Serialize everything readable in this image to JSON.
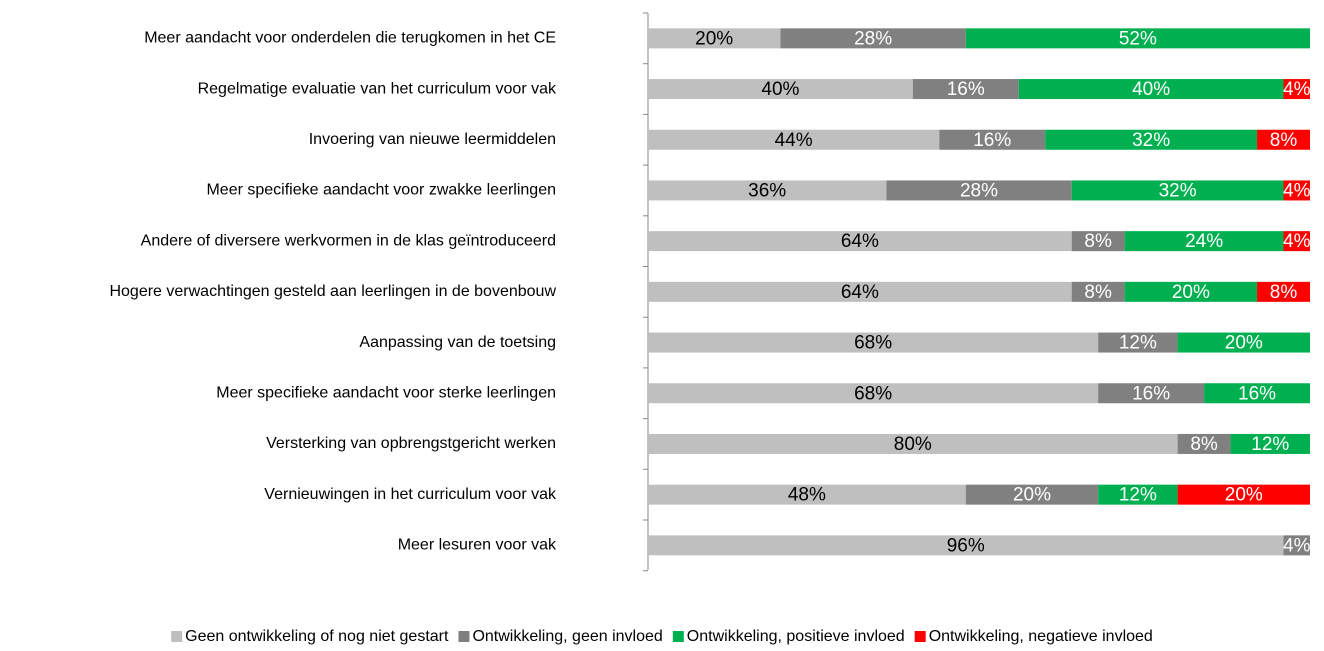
{
  "chart_data": {
    "type": "stacked-barh",
    "categories": [
      "Meer aandacht voor onderdelen die terugkomen in het CE",
      "Regelmatige evaluatie van het curriculum voor vak",
      "Invoering van nieuwe leermiddelen",
      "Meer specifieke aandacht voor zwakke leerlingen",
      "Andere of diversere werkvormen in de klas geïntroduceerd",
      "Hogere verwachtingen gesteld aan leerlingen in de bovenbouw",
      "Aanpassing van de toetsing",
      "Meer specifieke aandacht voor sterke leerlingen",
      "Versterking van opbrengstgericht werken",
      "Vernieuwingen in het curriculum voor vak",
      "Meer lesuren voor vak"
    ],
    "series": [
      {
        "name": "Geen ontwikkeling of nog niet gestart",
        "color": "#bfbfbf",
        "values": [
          20,
          40,
          44,
          36,
          64,
          64,
          68,
          68,
          80,
          48,
          96
        ],
        "value_labels": [
          "20%",
          "40%",
          "44%",
          "36%",
          "64%",
          "64%",
          "68%",
          "68%",
          "80%",
          "48%",
          "96%"
        ]
      },
      {
        "name": "Ontwikkeling, geen invloed",
        "color": "#808080",
        "values": [
          28,
          16,
          16,
          28,
          8,
          8,
          12,
          16,
          8,
          20,
          4
        ],
        "value_labels": [
          "28%",
          "16%",
          "16%",
          "28%",
          "8%",
          "8%",
          "12%",
          "16%",
          "8%",
          "20%",
          "4%"
        ]
      },
      {
        "name": "Ontwikkeling, positieve invloed",
        "color": "#00b050",
        "values": [
          52,
          40,
          32,
          32,
          24,
          20,
          20,
          16,
          12,
          12,
          null
        ],
        "value_labels": [
          "52%",
          "40%",
          "32%",
          "32%",
          "24%",
          "20%",
          "20%",
          "16%",
          "12%",
          "12%",
          null
        ]
      },
      {
        "name": "Ontwikkeling, negatieve invloed",
        "color": "#ff0000",
        "values": [
          null,
          4,
          8,
          4,
          4,
          8,
          null,
          null,
          null,
          20,
          null
        ],
        "value_labels": [
          null,
          "4%",
          "8%",
          "4%",
          "4%",
          "8%",
          null,
          null,
          null,
          "20%",
          null
        ]
      }
    ],
    "xlim": [
      0,
      100
    ]
  }
}
